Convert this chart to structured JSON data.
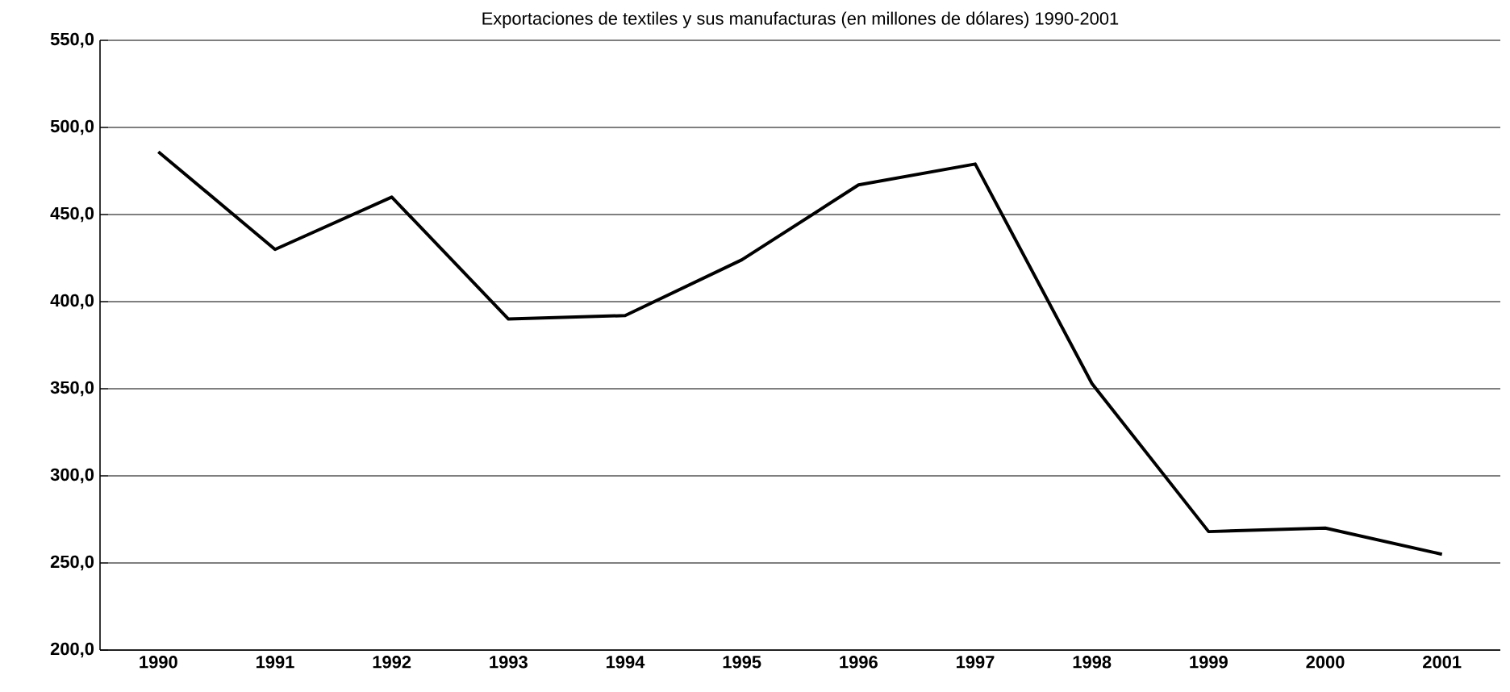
{
  "chart_data": {
    "type": "line",
    "title": "Exportaciones de textiles y sus manufacturas (en millones de dólares) 1990-2001",
    "categories": [
      "1990",
      "1991",
      "1992",
      "1993",
      "1994",
      "1995",
      "1996",
      "1997",
      "1998",
      "1999",
      "2000",
      "2001"
    ],
    "values": [
      486,
      430,
      460,
      390,
      392,
      424,
      467,
      479,
      353,
      268,
      270,
      255
    ],
    "color": "#000000",
    "marker": "none",
    "line_style": "solid",
    "grid": "y",
    "ylim": [
      200,
      550
    ],
    "yticks": [
      {
        "value": 200,
        "label": "200,0"
      },
      {
        "value": 250,
        "label": "250,0"
      },
      {
        "value": 300,
        "label": "300,0"
      },
      {
        "value": 350,
        "label": "350,0"
      },
      {
        "value": 400,
        "label": "400,0"
      },
      {
        "value": 450,
        "label": "450,0"
      },
      {
        "value": 500,
        "label": "500,0"
      },
      {
        "value": 550,
        "label": "550,0"
      }
    ]
  }
}
